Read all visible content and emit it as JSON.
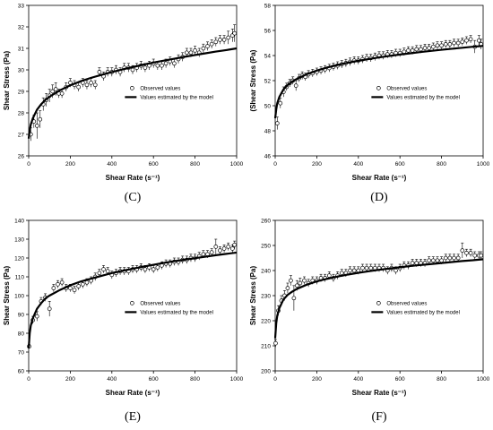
{
  "figure": {
    "captions": [
      "(C)",
      "(D)",
      "(E)",
      "(F)"
    ]
  },
  "legend_labels": {
    "observed": "Observed values",
    "model": "Values estimated by the model"
  },
  "chart_data": [
    {
      "type": "scatter",
      "panel": "C",
      "xlabel": "Shear Rate (s⁻¹)",
      "ylabel": "Shear Stress (Pa)",
      "xlim": [
        0,
        1000
      ],
      "ylim": [
        26,
        33
      ],
      "xticks": [
        0,
        200,
        400,
        600,
        800,
        1000
      ],
      "yticks": [
        26,
        27,
        28,
        29,
        30,
        31,
        32,
        33
      ],
      "legend_position": "center-right",
      "series": [
        {
          "name": "Observed values",
          "x": [
            10,
            25,
            40,
            55,
            70,
            85,
            100,
            115,
            130,
            145,
            160,
            180,
            200,
            220,
            240,
            260,
            280,
            300,
            320,
            340,
            360,
            380,
            400,
            420,
            440,
            460,
            480,
            500,
            520,
            540,
            560,
            580,
            600,
            620,
            640,
            660,
            680,
            700,
            720,
            740,
            760,
            780,
            800,
            820,
            840,
            860,
            880,
            900,
            920,
            940,
            960,
            980,
            990
          ],
          "y": [
            27.0,
            27.6,
            27.4,
            27.7,
            28.4,
            28.6,
            28.8,
            29.0,
            29.1,
            28.9,
            28.9,
            29.2,
            29.4,
            29.3,
            29.2,
            29.4,
            29.3,
            29.4,
            29.3,
            29.9,
            29.7,
            29.9,
            29.9,
            30.0,
            29.9,
            30.1,
            30.1,
            30.0,
            30.1,
            30.2,
            30.1,
            30.2,
            30.3,
            30.2,
            30.2,
            30.3,
            30.4,
            30.3,
            30.5,
            30.6,
            30.8,
            30.8,
            30.9,
            30.8,
            31.0,
            31.1,
            31.2,
            31.3,
            31.4,
            31.4,
            31.5,
            31.6,
            31.7
          ],
          "error": [
            0.3,
            0.3,
            0.6,
            0.4,
            0.3,
            0.3,
            0.3,
            0.3,
            0.3,
            0.2,
            0.2,
            0.2,
            0.2,
            0.2,
            0.2,
            0.2,
            0.2,
            0.2,
            0.2,
            0.2,
            0.2,
            0.2,
            0.2,
            0.2,
            0.2,
            0.2,
            0.2,
            0.2,
            0.2,
            0.2,
            0.2,
            0.2,
            0.2,
            0.2,
            0.2,
            0.2,
            0.2,
            0.2,
            0.2,
            0.2,
            0.2,
            0.2,
            0.2,
            0.2,
            0.2,
            0.2,
            0.2,
            0.2,
            0.2,
            0.2,
            0.3,
            0.3,
            0.4
          ]
        },
        {
          "name": "Values estimated by the model",
          "x": [
            0,
            5,
            10,
            20,
            40,
            60,
            80,
            100,
            150,
            200,
            250,
            300,
            350,
            400,
            450,
            500,
            550,
            600,
            650,
            700,
            750,
            800,
            850,
            900,
            950,
            1000
          ],
          "y": [
            26.8,
            27.2,
            27.45,
            27.75,
            28.15,
            28.4,
            28.6,
            28.75,
            29.05,
            29.28,
            29.47,
            29.63,
            29.77,
            29.9,
            30.02,
            30.13,
            30.24,
            30.34,
            30.43,
            30.52,
            30.61,
            30.69,
            30.77,
            30.85,
            30.92,
            31.0
          ]
        }
      ]
    },
    {
      "type": "scatter",
      "panel": "D",
      "xlabel": "Shear Rate (s⁻¹)",
      "ylabel": "(Shear Stress (Pa)",
      "xlim": [
        0,
        1000
      ],
      "ylim": [
        46,
        58
      ],
      "xticks": [
        0,
        200,
        400,
        600,
        800,
        1000
      ],
      "yticks": [
        46,
        48,
        50,
        52,
        54,
        56,
        58
      ],
      "legend_position": "center-right",
      "series": [
        {
          "name": "Observed values",
          "x": [
            10,
            25,
            40,
            55,
            70,
            85,
            100,
            115,
            130,
            145,
            160,
            180,
            200,
            220,
            240,
            260,
            280,
            300,
            320,
            340,
            360,
            380,
            400,
            420,
            440,
            460,
            480,
            500,
            520,
            540,
            560,
            580,
            600,
            620,
            640,
            660,
            680,
            700,
            720,
            740,
            760,
            780,
            800,
            820,
            840,
            860,
            880,
            900,
            920,
            940,
            960,
            980,
            990
          ],
          "y": [
            48.6,
            50.2,
            51.1,
            51.5,
            51.8,
            52.0,
            51.6,
            52.2,
            52.4,
            52.3,
            52.5,
            52.6,
            52.7,
            52.8,
            52.9,
            53.0,
            53.1,
            53.2,
            53.3,
            53.4,
            53.5,
            53.6,
            53.6,
            53.7,
            53.8,
            53.8,
            53.9,
            54.0,
            54.0,
            54.1,
            54.1,
            54.2,
            54.2,
            54.3,
            54.4,
            54.4,
            54.5,
            54.5,
            54.6,
            54.6,
            54.7,
            54.8,
            54.8,
            54.9,
            54.9,
            55.0,
            55.0,
            55.1,
            55.2,
            55.3,
            54.7,
            55.2,
            54.9
          ],
          "error": [
            0.5,
            0.4,
            0.4,
            0.3,
            0.3,
            0.3,
            0.4,
            0.3,
            0.3,
            0.3,
            0.3,
            0.3,
            0.3,
            0.3,
            0.3,
            0.3,
            0.3,
            0.3,
            0.3,
            0.3,
            0.3,
            0.3,
            0.3,
            0.3,
            0.3,
            0.3,
            0.3,
            0.3,
            0.3,
            0.3,
            0.3,
            0.3,
            0.3,
            0.3,
            0.3,
            0.3,
            0.3,
            0.3,
            0.3,
            0.3,
            0.3,
            0.3,
            0.3,
            0.3,
            0.3,
            0.3,
            0.3,
            0.3,
            0.3,
            0.3,
            0.5,
            0.4,
            0.4
          ]
        },
        {
          "name": "Values estimated by the model",
          "x": [
            0,
            5,
            10,
            20,
            40,
            60,
            80,
            100,
            150,
            200,
            250,
            300,
            350,
            400,
            450,
            500,
            550,
            600,
            650,
            700,
            750,
            800,
            850,
            900,
            950,
            1000
          ],
          "y": [
            49.0,
            49.7,
            50.2,
            50.7,
            51.3,
            51.65,
            51.9,
            52.1,
            52.5,
            52.8,
            53.05,
            53.25,
            53.43,
            53.58,
            53.72,
            53.85,
            53.97,
            54.08,
            54.18,
            54.28,
            54.37,
            54.46,
            54.54,
            54.62,
            54.7,
            54.77
          ]
        }
      ]
    },
    {
      "type": "scatter",
      "panel": "E",
      "xlabel": "Shear Rate (s⁻¹)",
      "ylabel": "Shear Stress (Pa)",
      "xlim": [
        0,
        1000
      ],
      "ylim": [
        60,
        140
      ],
      "xticks": [
        0,
        200,
        400,
        600,
        800,
        1000
      ],
      "yticks": [
        60,
        70,
        80,
        90,
        100,
        110,
        120,
        130,
        140
      ],
      "legend_position": "center-right",
      "series": [
        {
          "name": "Observed values",
          "x": [
            2,
            20,
            40,
            60,
            80,
            100,
            120,
            140,
            160,
            180,
            200,
            220,
            240,
            260,
            280,
            300,
            320,
            340,
            360,
            380,
            400,
            420,
            440,
            460,
            480,
            500,
            520,
            540,
            560,
            580,
            600,
            620,
            640,
            660,
            680,
            700,
            720,
            740,
            760,
            780,
            800,
            820,
            840,
            860,
            880,
            900,
            920,
            940,
            960,
            980,
            990
          ],
          "y": [
            73,
            87,
            89,
            97,
            99,
            93,
            104,
            106,
            107,
            104,
            104,
            103,
            105,
            106,
            107,
            108,
            110,
            112,
            114,
            113,
            111,
            112,
            113,
            113,
            113,
            114,
            114,
            115,
            114,
            115,
            114,
            115,
            116,
            117,
            117,
            118,
            118,
            119,
            119,
            120,
            120,
            121,
            122,
            122,
            123,
            126,
            124,
            125,
            126,
            125,
            127
          ],
          "error": [
            1.0,
            2.0,
            2.5,
            2.0,
            2.0,
            4.0,
            2.0,
            2.0,
            2.0,
            2.0,
            2.0,
            2.0,
            2.0,
            2.0,
            2.0,
            2.0,
            2.0,
            2.0,
            2.0,
            2.0,
            2.0,
            2.0,
            2.0,
            2.0,
            2.0,
            2.0,
            2.0,
            2.0,
            2.0,
            2.0,
            2.0,
            2.0,
            2.0,
            2.0,
            2.0,
            2.0,
            2.0,
            2.0,
            2.0,
            2.0,
            2.0,
            2.0,
            2.0,
            2.0,
            2.0,
            4.0,
            2.0,
            2.0,
            2.0,
            2.0,
            2.0
          ]
        },
        {
          "name": "Values estimated by the model",
          "x": [
            0,
            5,
            10,
            20,
            40,
            60,
            80,
            100,
            150,
            200,
            250,
            300,
            350,
            400,
            450,
            500,
            550,
            600,
            650,
            700,
            750,
            800,
            850,
            900,
            950,
            1000
          ],
          "y": [
            72,
            80,
            84,
            88,
            93,
            96,
            98.5,
            100,
            103,
            105.5,
            107.5,
            109,
            110.5,
            112,
            113.2,
            114.3,
            115.4,
            116.4,
            117.4,
            118.3,
            119.1,
            119.9,
            120.7,
            121.5,
            122.2,
            122.9
          ]
        }
      ]
    },
    {
      "type": "scatter",
      "panel": "F",
      "xlabel": "Shear Rate (s⁻¹)",
      "ylabel": "Shear Stress (Pa)",
      "xlim": [
        0,
        1000
      ],
      "ylim": [
        200,
        260
      ],
      "xticks": [
        0,
        200,
        400,
        600,
        800,
        1000
      ],
      "yticks": [
        200,
        210,
        220,
        230,
        240,
        250,
        260
      ],
      "legend_position": "center-right",
      "series": [
        {
          "name": "Observed values",
          "x": [
            2,
            15,
            30,
            45,
            60,
            75,
            90,
            105,
            120,
            140,
            160,
            180,
            200,
            220,
            240,
            260,
            280,
            300,
            320,
            340,
            360,
            380,
            400,
            420,
            440,
            460,
            480,
            500,
            520,
            540,
            560,
            580,
            600,
            620,
            640,
            660,
            680,
            700,
            720,
            740,
            760,
            780,
            800,
            820,
            840,
            860,
            880,
            900,
            920,
            940,
            960,
            980,
            990
          ],
          "y": [
            211,
            224,
            228,
            230,
            233,
            236,
            229,
            234,
            235,
            236,
            235,
            236,
            236,
            237,
            237,
            238,
            237,
            238,
            239,
            239,
            240,
            240,
            240,
            241,
            241,
            241,
            241,
            241,
            241,
            240,
            241,
            240,
            241,
            242,
            242,
            243,
            243,
            243,
            243,
            244,
            244,
            244,
            244,
            245,
            245,
            245,
            245,
            248,
            247,
            247,
            246,
            246,
            246
          ],
          "error": [
            1.5,
            2.0,
            2.0,
            2.0,
            2.0,
            2.0,
            5.0,
            2.0,
            2.0,
            1.5,
            1.5,
            1.5,
            1.5,
            1.5,
            1.5,
            1.5,
            1.5,
            1.5,
            1.5,
            1.5,
            1.5,
            1.5,
            1.5,
            1.5,
            1.5,
            1.5,
            1.5,
            1.5,
            1.5,
            1.5,
            1.5,
            1.5,
            1.5,
            1.5,
            1.5,
            1.5,
            1.5,
            1.5,
            1.5,
            1.5,
            1.5,
            1.5,
            1.5,
            1.5,
            1.5,
            1.5,
            1.5,
            3.0,
            1.5,
            1.5,
            1.5,
            1.5,
            1.5
          ]
        },
        {
          "name": "Values estimated by the model",
          "x": [
            0,
            5,
            10,
            20,
            40,
            60,
            80,
            100,
            150,
            200,
            250,
            300,
            350,
            400,
            450,
            500,
            550,
            600,
            650,
            700,
            750,
            800,
            850,
            900,
            950,
            1000
          ],
          "y": [
            213,
            219,
            222,
            225,
            228.5,
            230.3,
            231.5,
            232.5,
            234.3,
            235.7,
            236.7,
            237.6,
            238.4,
            239.1,
            239.7,
            240.3,
            240.8,
            241.3,
            241.8,
            242.2,
            242.6,
            243.0,
            243.4,
            243.8,
            244.1,
            244.5
          ]
        }
      ]
    }
  ]
}
